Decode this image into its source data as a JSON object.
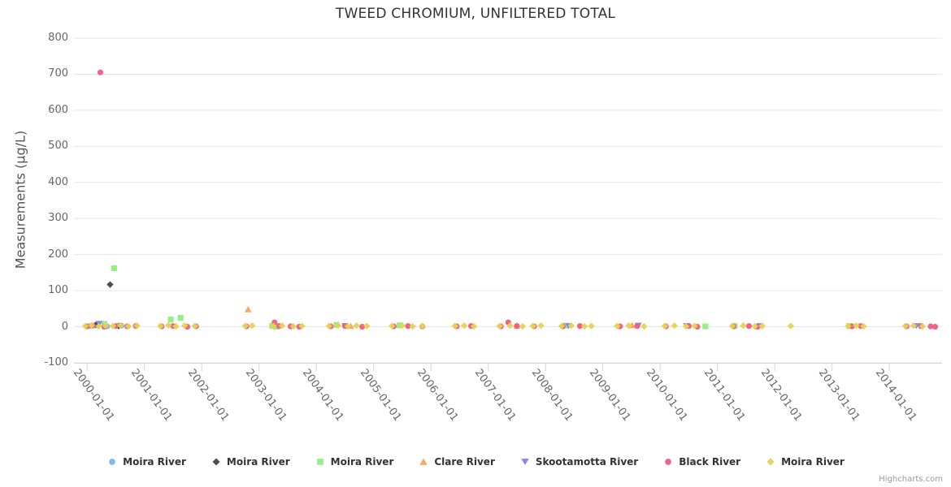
{
  "title": "TWEED CHROMIUM, UNFILTERED TOTAL",
  "credits_label": "Highcharts.com",
  "chart_data": {
    "type": "scatter",
    "title": "TWEED CHROMIUM, UNFILTERED TOTAL",
    "xlabel": "",
    "ylabel": "Measurements (µg/L)",
    "ylim": [
      -100,
      800
    ],
    "yticks": [
      800,
      700,
      600,
      500,
      400,
      300,
      200,
      100,
      0,
      -100
    ],
    "xtick_labels": [
      "2000-01-01",
      "2001-01-01",
      "2002-01-01",
      "2003-01-01",
      "2004-01-01",
      "2005-01-01",
      "2006-01-01",
      "2007-01-01",
      "2008-01-01",
      "2009-01-01",
      "2010-01-01",
      "2011-01-01",
      "2012-01-01",
      "2013-01-01",
      "2014-01-01"
    ],
    "xtick_years": [
      2000,
      2001,
      2002,
      2003,
      2004,
      2005,
      2006,
      2007,
      2008,
      2009,
      2010,
      2011,
      2012,
      2013,
      2014
    ],
    "x_range_years": [
      1999.77,
      2014.92
    ],
    "grid": true,
    "legend_position": "bottom",
    "colors": {
      "grid": "#e6e6e6",
      "axis_line": "#ccd6eb",
      "title_text": "#333333",
      "label_text": "#666666",
      "legend_text": "#333333"
    },
    "series": [
      {
        "name": "Moira River",
        "marker": "circle",
        "color": "#7cb5ec",
        "data": [
          [
            2000.05,
            2
          ],
          [
            2000.18,
            4
          ],
          [
            2000.35,
            1
          ],
          [
            2000.6,
            3
          ]
        ]
      },
      {
        "name": "Moira River",
        "marker": "diamond",
        "color": "#434348",
        "data": [
          [
            2000.15,
            5
          ],
          [
            2000.4,
            117
          ],
          [
            2000.55,
            2
          ]
        ]
      },
      {
        "name": "Moira River",
        "marker": "square",
        "color": "#90ed7d",
        "data": [
          [
            2000.3,
            8
          ],
          [
            2000.47,
            162
          ],
          [
            2001.46,
            20
          ],
          [
            2001.63,
            25
          ],
          [
            2003.23,
            2
          ],
          [
            2003.3,
            0
          ],
          [
            2004.35,
            5
          ],
          [
            2005.45,
            4
          ],
          [
            2008.35,
            3
          ],
          [
            2010.79,
            1
          ],
          [
            2011.3,
            2
          ],
          [
            2013.3,
            2
          ]
        ]
      },
      {
        "name": "Clare River",
        "marker": "triangle",
        "color": "#f7a35c",
        "data": [
          [
            2002.81,
            48
          ],
          [
            2004.6,
            2
          ],
          [
            2007.5,
            3
          ],
          [
            2009.51,
            4
          ]
        ]
      },
      {
        "name": "Skootamotta River",
        "marker": "triangle-down",
        "color": "#8085e9",
        "data": [
          [
            2000.21,
            8
          ],
          [
            2004.5,
            2
          ],
          [
            2008.4,
            2
          ],
          [
            2009.62,
            3
          ],
          [
            2010.46,
            2
          ],
          [
            2011.74,
            2
          ],
          [
            2014.47,
            2
          ]
        ]
      },
      {
        "name": "Black River",
        "marker": "circle",
        "color": "#f15c80",
        "data": [
          [
            2000.0,
            1
          ],
          [
            2000.1,
            3
          ],
          [
            2000.23,
            705
          ],
          [
            2000.3,
            0
          ],
          [
            2000.5,
            2
          ],
          [
            2000.7,
            1
          ],
          [
            2000.85,
            2
          ],
          [
            2001.3,
            1
          ],
          [
            2001.5,
            2
          ],
          [
            2001.75,
            0
          ],
          [
            2001.9,
            1
          ],
          [
            2002.78,
            1
          ],
          [
            2003.27,
            12
          ],
          [
            2003.35,
            2
          ],
          [
            2003.55,
            1
          ],
          [
            2003.7,
            0
          ],
          [
            2004.25,
            1
          ],
          [
            2004.5,
            2
          ],
          [
            2004.8,
            0
          ],
          [
            2005.35,
            1
          ],
          [
            2005.6,
            2
          ],
          [
            2005.85,
            1
          ],
          [
            2006.45,
            1
          ],
          [
            2006.7,
            2
          ],
          [
            2007.22,
            1
          ],
          [
            2007.35,
            12
          ],
          [
            2007.5,
            2
          ],
          [
            2007.8,
            1
          ],
          [
            2008.3,
            1
          ],
          [
            2008.6,
            2
          ],
          [
            2009.3,
            1
          ],
          [
            2009.6,
            2
          ],
          [
            2010.1,
            1
          ],
          [
            2010.5,
            2
          ],
          [
            2010.65,
            0
          ],
          [
            2011.28,
            1
          ],
          [
            2011.55,
            2
          ],
          [
            2011.7,
            0
          ],
          [
            2013.35,
            1
          ],
          [
            2013.5,
            2
          ],
          [
            2014.3,
            1
          ],
          [
            2014.55,
            2
          ],
          [
            2014.72,
            1
          ],
          [
            2014.8,
            0
          ]
        ]
      },
      {
        "name": "Moira River",
        "marker": "diamond",
        "color": "#e4d354",
        "data": [
          [
            1999.97,
            2
          ],
          [
            2000.08,
            4
          ],
          [
            2000.2,
            1
          ],
          [
            2000.32,
            3
          ],
          [
            2000.45,
            2
          ],
          [
            2000.58,
            4
          ],
          [
            2000.72,
            1
          ],
          [
            2000.87,
            3
          ],
          [
            2001.28,
            2
          ],
          [
            2001.42,
            4
          ],
          [
            2001.55,
            1
          ],
          [
            2001.7,
            3
          ],
          [
            2001.88,
            2
          ],
          [
            2002.76,
            2
          ],
          [
            2002.88,
            3
          ],
          [
            2003.25,
            2
          ],
          [
            2003.4,
            3
          ],
          [
            2003.6,
            1
          ],
          [
            2003.75,
            2
          ],
          [
            2004.22,
            2
          ],
          [
            2004.38,
            3
          ],
          [
            2004.55,
            1
          ],
          [
            2004.7,
            3
          ],
          [
            2004.88,
            2
          ],
          [
            2005.32,
            2
          ],
          [
            2005.5,
            3
          ],
          [
            2005.68,
            1
          ],
          [
            2005.85,
            2
          ],
          [
            2006.42,
            2
          ],
          [
            2006.58,
            3
          ],
          [
            2006.75,
            1
          ],
          [
            2007.2,
            2
          ],
          [
            2007.38,
            3
          ],
          [
            2007.6,
            1
          ],
          [
            2007.78,
            2
          ],
          [
            2007.92,
            3
          ],
          [
            2008.28,
            2
          ],
          [
            2008.45,
            3
          ],
          [
            2008.68,
            1
          ],
          [
            2008.8,
            2
          ],
          [
            2009.25,
            2
          ],
          [
            2009.45,
            3
          ],
          [
            2009.72,
            1
          ],
          [
            2010.08,
            2
          ],
          [
            2010.25,
            3
          ],
          [
            2010.45,
            1
          ],
          [
            2010.6,
            2
          ],
          [
            2011.26,
            2
          ],
          [
            2011.45,
            3
          ],
          [
            2011.65,
            1
          ],
          [
            2011.78,
            2
          ],
          [
            2012.28,
            2
          ],
          [
            2013.28,
            2
          ],
          [
            2013.42,
            3
          ],
          [
            2013.55,
            1
          ],
          [
            2014.28,
            2
          ],
          [
            2014.42,
            3
          ],
          [
            2014.58,
            1
          ]
        ]
      }
    ]
  }
}
